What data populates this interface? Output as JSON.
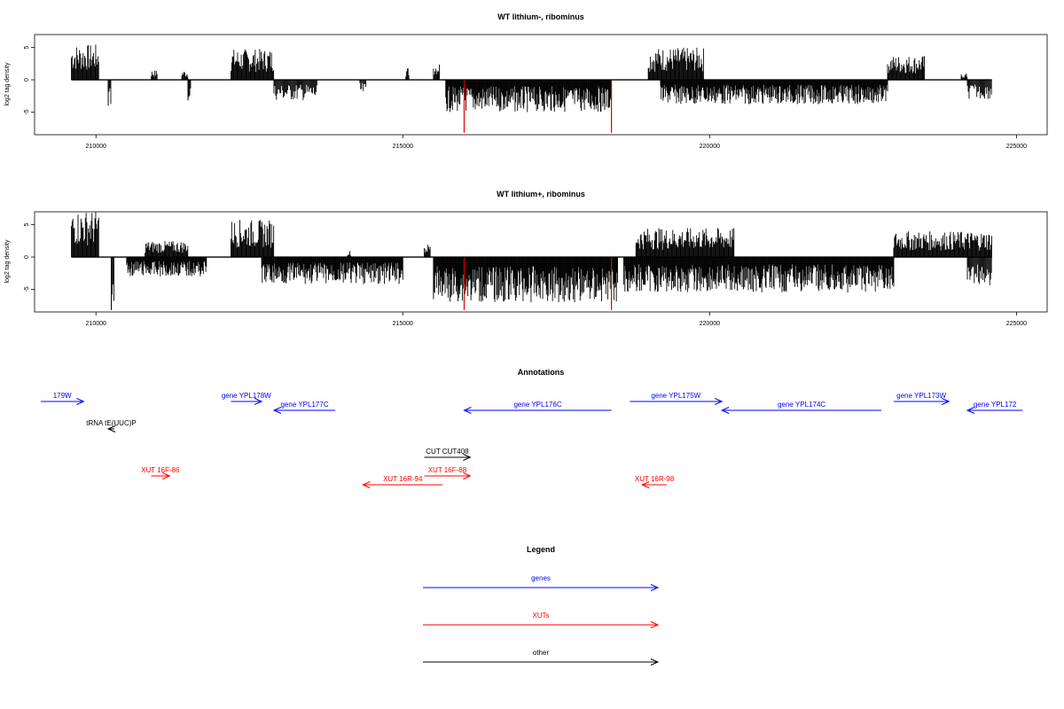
{
  "colors": {
    "genes": "#0000ff",
    "xuts": "#ff0000",
    "other": "#000000",
    "highlight": "#dd0000"
  },
  "chart_data": [
    {
      "type": "bar",
      "title": "WT lithium-, ribominus",
      "ylabel": "log2 tag density",
      "xlim": [
        209000,
        225500
      ],
      "ylim": [
        -8.5,
        7
      ],
      "xticks": [
        210000,
        215000,
        220000,
        225000
      ],
      "yticks": [
        5,
        0,
        -5
      ],
      "xtick_labels": [
        "210000",
        "215000",
        "220000",
        "225000"
      ],
      "ytick_labels": [
        "5",
        "0",
        "-5"
      ],
      "x_range": [
        209600,
        224600
      ],
      "highlight_bars": [
        {
          "x": 216000,
          "value": -8.2
        },
        {
          "x": 218400,
          "value": -8.2
        }
      ],
      "positive_segments": [
        {
          "start": 209600,
          "end": 210050,
          "max": 5.5
        },
        {
          "start": 210900,
          "end": 211000,
          "max": 1.5
        },
        {
          "start": 211400,
          "end": 211500,
          "max": 1.5
        },
        {
          "start": 212200,
          "end": 212900,
          "max": 4.8
        },
        {
          "start": 215050,
          "end": 215100,
          "max": 2.0
        },
        {
          "start": 215500,
          "end": 215600,
          "max": 2.8
        },
        {
          "start": 219000,
          "end": 219900,
          "max": 5.0
        },
        {
          "start": 222900,
          "end": 223500,
          "max": 3.8
        },
        {
          "start": 224100,
          "end": 224200,
          "max": 1.0
        }
      ],
      "negative_segments": [
        {
          "start": 210200,
          "end": 210250,
          "min": -4.0
        },
        {
          "start": 211500,
          "end": 211550,
          "min": -3.2
        },
        {
          "start": 212900,
          "end": 213600,
          "min": -3.2
        },
        {
          "start": 214300,
          "end": 214400,
          "min": -2.5
        },
        {
          "start": 215700,
          "end": 218400,
          "min": -5.0
        },
        {
          "start": 219200,
          "end": 222900,
          "min": -3.8
        },
        {
          "start": 224200,
          "end": 224600,
          "min": -3.0
        }
      ]
    },
    {
      "type": "bar",
      "title": "WT lithium+, ribominus",
      "ylabel": "log2 tag density",
      "xlim": [
        209000,
        225500
      ],
      "ylim": [
        -8.5,
        7
      ],
      "xticks": [
        210000,
        215000,
        220000,
        225000
      ],
      "yticks": [
        5,
        0,
        -5
      ],
      "xtick_labels": [
        "210000",
        "215000",
        "220000",
        "225000"
      ],
      "ytick_labels": [
        "5",
        "0",
        "-5"
      ],
      "x_range": [
        209600,
        224600
      ],
      "highlight_bars": [
        {
          "x": 216000,
          "value": -8.2
        },
        {
          "x": 218400,
          "value": -8.2
        }
      ],
      "positive_segments": [
        {
          "start": 209600,
          "end": 210050,
          "max": 7.2
        },
        {
          "start": 210800,
          "end": 211500,
          "max": 2.5
        },
        {
          "start": 212200,
          "end": 212900,
          "max": 5.8
        },
        {
          "start": 214100,
          "end": 214150,
          "max": 1.0
        },
        {
          "start": 215350,
          "end": 215450,
          "max": 2.0
        },
        {
          "start": 218800,
          "end": 220400,
          "max": 4.5
        },
        {
          "start": 223000,
          "end": 224600,
          "max": 4.0
        }
      ],
      "negative_segments": [
        {
          "start": 210250,
          "end": 210300,
          "min": -8.2
        },
        {
          "start": 210500,
          "end": 211800,
          "min": -3.0
        },
        {
          "start": 212700,
          "end": 215000,
          "min": -4.2
        },
        {
          "start": 215500,
          "end": 218500,
          "min": -7.0
        },
        {
          "start": 218600,
          "end": 223000,
          "min": -5.5
        },
        {
          "start": 224200,
          "end": 224600,
          "min": -4.5
        }
      ]
    }
  ],
  "annotations": {
    "title": "Annotations",
    "features": [
      {
        "label": "179W",
        "type": "genes",
        "start": 209100,
        "end": 209800,
        "strand": "+",
        "row": 0
      },
      {
        "label": "gene YPL178W",
        "type": "genes",
        "start": 212200,
        "end": 212700,
        "strand": "+",
        "row": 0
      },
      {
        "label": "gene YPL177C",
        "type": "genes",
        "start": 212900,
        "end": 213900,
        "strand": "-",
        "row": 1
      },
      {
        "label": "gene YPL176C",
        "type": "genes",
        "start": 216000,
        "end": 218400,
        "strand": "-",
        "row": 1
      },
      {
        "label": "gene YPL175W",
        "type": "genes",
        "start": 218700,
        "end": 220200,
        "strand": "+",
        "row": 0
      },
      {
        "label": "gene YPL174C",
        "type": "genes",
        "start": 220200,
        "end": 222800,
        "strand": "-",
        "row": 1
      },
      {
        "label": "gene YPL173W",
        "type": "genes",
        "start": 223000,
        "end": 223900,
        "strand": "+",
        "row": 0
      },
      {
        "label": "gene YPL172",
        "type": "genes",
        "start": 224200,
        "end": 225100,
        "strand": "-",
        "row": 1
      },
      {
        "label": "tRNA tE(UUC)P",
        "type": "other",
        "start": 210200,
        "end": 210300,
        "strand": "-",
        "row": 2
      },
      {
        "label": "CUT CUT408",
        "type": "other",
        "start": 215350,
        "end": 216100,
        "strand": "+",
        "row": 3
      },
      {
        "label": "XUT 16F-86",
        "type": "xuts",
        "start": 210900,
        "end": 211200,
        "strand": "+",
        "row": 4
      },
      {
        "label": "XUT 16F-88",
        "type": "xuts",
        "start": 215350,
        "end": 216100,
        "strand": "+",
        "row": 4
      },
      {
        "label": "XUT 16R-94",
        "type": "xuts",
        "start": 214350,
        "end": 215650,
        "strand": "-",
        "row": 5
      },
      {
        "label": "XUT 16R-98",
        "type": "xuts",
        "start": 218900,
        "end": 219300,
        "strand": "-",
        "row": 5
      }
    ]
  },
  "legend": {
    "title": "Legend",
    "entries": [
      {
        "label": "genes",
        "type": "genes"
      },
      {
        "label": "XUTs",
        "type": "xuts"
      },
      {
        "label": "other",
        "type": "other"
      }
    ]
  }
}
